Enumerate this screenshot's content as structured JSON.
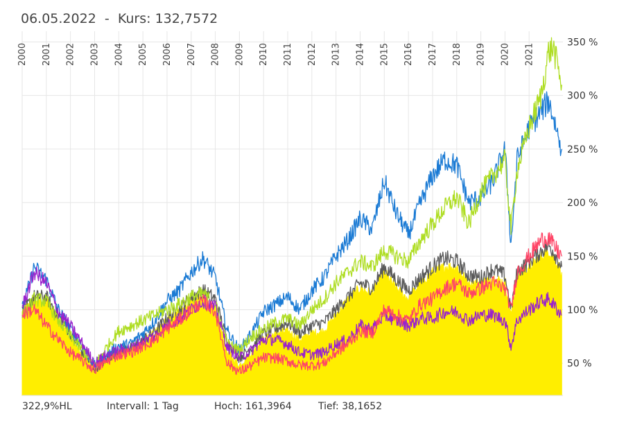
{
  "header": {
    "date": "06.05.2022",
    "separator": "-",
    "kurs_label": "Kurs:",
    "kurs_value": "132,7572"
  },
  "footer": {
    "hl": "322,9%HL",
    "intervall": "Intervall: 1 Tag",
    "hoch": "Hoch: 161,3964",
    "tief": "Tief: 38,1652"
  },
  "chart_data": {
    "type": "area",
    "title": "06.05.2022 - Kurs: 132,7572",
    "xlabel": "",
    "ylabel": "",
    "x_range": [
      2000.0,
      2022.4
    ],
    "ylim": [
      20,
      360
    ],
    "grid": true,
    "y_axis_position": "right",
    "x_tick_labels": [
      "2000",
      "2001",
      "2002",
      "2003",
      "2004",
      "2005",
      "2006",
      "2007",
      "2008",
      "2009",
      "2010",
      "2011",
      "2012",
      "2013",
      "2014",
      "2015",
      "2016",
      "2017",
      "2018",
      "2019",
      "2020",
      "2021"
    ],
    "x_tick_values": [
      2000,
      2001,
      2002,
      2003,
      2004,
      2005,
      2006,
      2007,
      2008,
      2009,
      2010,
      2011,
      2012,
      2013,
      2014,
      2015,
      2016,
      2017,
      2018,
      2019,
      2020,
      2021
    ],
    "y_ticks": [
      50,
      100,
      150,
      200,
      250,
      300,
      350
    ],
    "y_tick_labels": [
      "50 %",
      "100 %",
      "150 %",
      "200 %",
      "250 %",
      "300 %",
      "350 %"
    ],
    "x": [
      2000.0,
      2000.5,
      2001.0,
      2001.5,
      2002.0,
      2002.5,
      2003.0,
      2003.5,
      2004.0,
      2004.5,
      2005.0,
      2005.5,
      2006.0,
      2006.5,
      2007.0,
      2007.5,
      2008.0,
      2008.5,
      2009.0,
      2009.5,
      2010.0,
      2010.5,
      2011.0,
      2011.5,
      2012.0,
      2012.5,
      2013.0,
      2013.5,
      2014.0,
      2014.5,
      2015.0,
      2015.5,
      2016.0,
      2016.5,
      2017.0,
      2017.5,
      2018.0,
      2018.5,
      2019.0,
      2019.5,
      2020.0,
      2020.25,
      2020.5,
      2021.0,
      2021.5,
      2021.8,
      2022.0,
      2022.35
    ],
    "series": [
      {
        "name": "Hauptwert (gelbe Fläche)",
        "color": "#ffee00",
        "fill": true,
        "values": [
          97,
          110,
          108,
          92,
          72,
          58,
          44,
          52,
          62,
          62,
          70,
          78,
          90,
          98,
          110,
          112,
          100,
          60,
          48,
          60,
          72,
          78,
          80,
          72,
          78,
          80,
          95,
          110,
          120,
          115,
          135,
          120,
          110,
          125,
          135,
          140,
          140,
          125,
          125,
          130,
          125,
          95,
          130,
          140,
          150,
          155,
          150,
          135
        ]
      },
      {
        "name": "Dunkelgrau",
        "color": "#5a5a5a",
        "fill": false,
        "values": [
          98,
          112,
          112,
          94,
          78,
          60,
          45,
          54,
          63,
          64,
          72,
          80,
          92,
          100,
          112,
          118,
          110,
          70,
          55,
          65,
          78,
          82,
          88,
          78,
          85,
          88,
          100,
          112,
          125,
          120,
          140,
          128,
          118,
          130,
          140,
          148,
          145,
          132,
          130,
          138,
          132,
          100,
          135,
          145,
          155,
          160,
          155,
          140
        ]
      },
      {
        "name": "Blau",
        "color": "#1a7ad4",
        "fill": false,
        "values": [
          100,
          140,
          128,
          100,
          82,
          66,
          48,
          58,
          66,
          68,
          78,
          90,
          108,
          118,
          135,
          148,
          130,
          80,
          62,
          78,
          98,
          105,
          112,
          100,
          118,
          130,
          150,
          165,
          185,
          175,
          220,
          190,
          170,
          200,
          225,
          240,
          235,
          200,
          205,
          220,
          250,
          160,
          240,
          270,
          285,
          295,
          280,
          250
        ]
      },
      {
        "name": "Gelbgrün",
        "color": "#aedd22",
        "fill": false,
        "values": [
          95,
          110,
          108,
          90,
          75,
          62,
          48,
          65,
          80,
          85,
          90,
          95,
          100,
          105,
          112,
          115,
          105,
          68,
          62,
          75,
          82,
          88,
          92,
          85,
          100,
          110,
          125,
          135,
          145,
          140,
          155,
          150,
          145,
          165,
          180,
          195,
          205,
          180,
          210,
          225,
          240,
          175,
          230,
          270,
          300,
          340,
          345,
          310
        ]
      },
      {
        "name": "Lila",
        "color": "#9a22cc",
        "fill": false,
        "values": [
          102,
          135,
          125,
          98,
          85,
          68,
          50,
          58,
          62,
          64,
          70,
          76,
          85,
          92,
          100,
          108,
          102,
          65,
          55,
          62,
          72,
          72,
          68,
          60,
          58,
          60,
          68,
          72,
          85,
          82,
          95,
          90,
          85,
          92,
          92,
          98,
          98,
          90,
          95,
          95,
          90,
          65,
          90,
          100,
          108,
          110,
          105,
          95
        ]
      },
      {
        "name": "Rot",
        "color": "#ff4466",
        "fill": false,
        "values": [
          96,
          100,
          85,
          72,
          60,
          52,
          44,
          52,
          58,
          60,
          66,
          72,
          82,
          90,
          100,
          108,
          98,
          50,
          42,
          48,
          55,
          55,
          52,
          48,
          48,
          50,
          60,
          68,
          80,
          78,
          100,
          95,
          90,
          105,
          110,
          120,
          125,
          115,
          120,
          125,
          120,
          100,
          135,
          150,
          165,
          168,
          160,
          150
        ]
      }
    ]
  }
}
